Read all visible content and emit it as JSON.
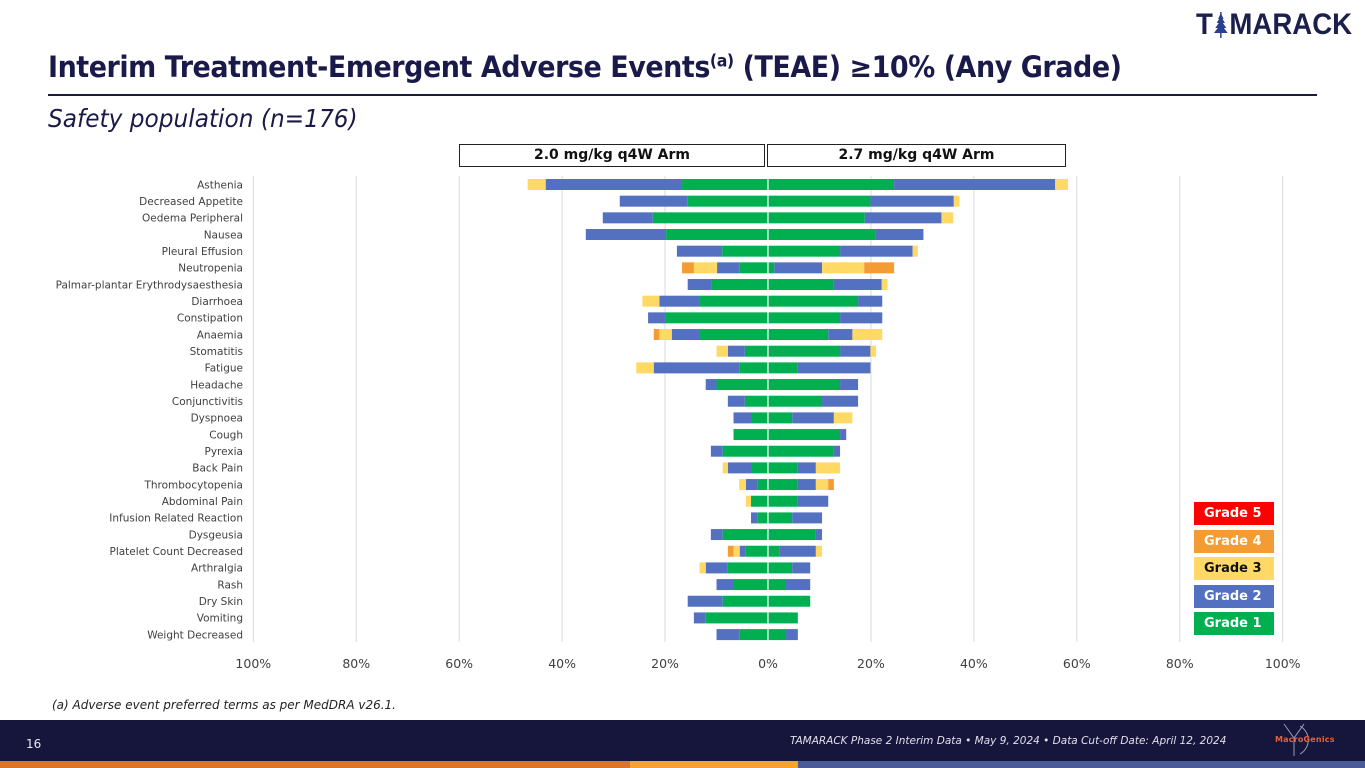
{
  "header": {
    "logo_text_left": "T",
    "logo_text_right": "MARACK",
    "title_main": "Interim Treatment-Emergent Adverse Events",
    "title_sup": "(a)",
    "title_tail": " (TEAE) ≥10% (Any Grade)",
    "subtitle": "Safety population (n=176)"
  },
  "arms": {
    "left_label": "2.0 mg/kg q4W Arm",
    "right_label": "2.7 mg/kg q4W Arm"
  },
  "legend": [
    {
      "label": "Grade 5",
      "color": "#ff0000",
      "text_color": "#ffffff"
    },
    {
      "label": "Grade 4",
      "color": "#f39c33",
      "text_color": "#ffffff"
    },
    {
      "label": "Grade 3",
      "color": "#ffd966",
      "text_color": "#111111"
    },
    {
      "label": "Grade 2",
      "color": "#5470c1",
      "text_color": "#ffffff"
    },
    {
      "label": "Grade 1",
      "color": "#00b050",
      "text_color": "#ffffff"
    }
  ],
  "chart_data": {
    "type": "bar",
    "orientation": "horizontal",
    "stacked": true,
    "layout": "butterfly",
    "title": "Interim Treatment-Emergent Adverse Events (TEAE) ≥10% (Any Grade)",
    "xlabel": "",
    "ylabel": "",
    "xlim": [
      -100,
      100
    ],
    "x_ticks": [
      "100%",
      "80%",
      "60%",
      "40%",
      "20%",
      "0%",
      "20%",
      "40%",
      "60%",
      "80%",
      "100%"
    ],
    "grid": true,
    "legend_position": "bottom-right",
    "grade_order": [
      "Grade 1",
      "Grade 2",
      "Grade 3",
      "Grade 4",
      "Grade 5"
    ],
    "grade_colors": [
      "#00b050",
      "#5470c1",
      "#ffd966",
      "#f39c33",
      "#ff0000"
    ],
    "panels": [
      "2.0 mg/kg q4W Arm",
      "2.7 mg/kg q4W Arm"
    ],
    "categories": [
      "Asthenia",
      "Decreased Appetite",
      "Oedema Peripheral",
      "Nausea",
      "Pleural Effusion",
      "Neutropenia",
      "Palmar-plantar Erythrodysaesthesia",
      "Diarrhoea",
      "Constipation",
      "Anaemia",
      "Stomatitis",
      "Fatigue",
      "Headache",
      "Conjunctivitis",
      "Dyspnoea",
      "Cough",
      "Pyrexia",
      "Back Pain",
      "Thrombocytopenia",
      "Abdominal Pain",
      "Infusion Related Reaction",
      "Dysgeusia",
      "Platelet Count Decreased",
      "Arthralgia",
      "Rash",
      "Dry Skin",
      "Vomiting",
      "Weight Decreased"
    ],
    "series_left_2_0mgkg": {
      "Grade 1": [
        16.7,
        15.6,
        22.4,
        19.8,
        8.9,
        5.5,
        10.9,
        13.3,
        20.0,
        13.4,
        4.5,
        5.6,
        10.0,
        4.5,
        3.2,
        6.7,
        8.8,
        3.2,
        2.1,
        3.3,
        2.1,
        8.8,
        4.3,
        7.8,
        6.7,
        8.8,
        12.1,
        5.5
      ],
      "Grade 2": [
        26.5,
        13.2,
        9.7,
        15.6,
        8.8,
        4.4,
        4.7,
        7.8,
        3.3,
        5.3,
        3.3,
        16.6,
        2.1,
        3.3,
        3.5,
        0,
        2.3,
        4.6,
        2.2,
        0,
        1.2,
        2.3,
        1.2,
        4.3,
        3.3,
        6.8,
        2.3,
        4.5
      ],
      "Grade 3": [
        3.5,
        0,
        0,
        0,
        0,
        4.5,
        0,
        3.3,
        0,
        2.4,
        2.2,
        3.4,
        0,
        0,
        0,
        0,
        0,
        1.0,
        1.3,
        1.0,
        0,
        0,
        1.2,
        1.2,
        0,
        0,
        0,
        0
      ],
      "Grade 4": [
        0,
        0,
        0,
        0,
        0,
        2.3,
        0,
        0,
        0,
        1.1,
        0,
        0,
        0,
        0,
        0,
        0,
        0,
        0,
        0,
        0,
        0,
        0,
        1.1,
        0,
        0,
        0,
        0,
        0
      ],
      "Grade 5": [
        0,
        0,
        0,
        0,
        0,
        0,
        0,
        0,
        0,
        0,
        0,
        0,
        0,
        0,
        0,
        0,
        0,
        0,
        0,
        0,
        0,
        0,
        0,
        0,
        0,
        0,
        0,
        0
      ]
    },
    "series_right_2_7mgkg": {
      "Grade 1": [
        24.5,
        19.9,
        18.8,
        20.9,
        14.0,
        1.2,
        12.8,
        17.5,
        14.0,
        11.7,
        14.0,
        5.8,
        14.0,
        10.5,
        4.7,
        14.0,
        12.8,
        5.8,
        5.8,
        5.8,
        4.7,
        9.3,
        2.3,
        4.7,
        3.5,
        8.2,
        5.8,
        3.5
      ],
      "Grade 2": [
        31.3,
        16.2,
        14.9,
        9.3,
        14.1,
        9.3,
        9.3,
        4.7,
        8.2,
        4.7,
        5.9,
        14.1,
        3.5,
        7.0,
        8.1,
        1.2,
        1.2,
        3.5,
        3.5,
        5.9,
        5.8,
        1.2,
        7.0,
        3.5,
        4.7,
        0,
        0,
        2.3
      ],
      "Grade 3": [
        2.5,
        1.1,
        2.3,
        0,
        1.0,
        8.2,
        1.1,
        0,
        0,
        5.8,
        1.1,
        0,
        0,
        0,
        3.6,
        0,
        0,
        4.7,
        2.4,
        0,
        0,
        0,
        1.2,
        0,
        0,
        0,
        0,
        0
      ],
      "Grade 4": [
        0,
        0,
        0,
        0,
        0,
        5.8,
        0,
        0,
        0,
        0,
        0,
        0,
        0,
        0,
        0,
        0,
        0,
        0,
        1.1,
        0,
        0,
        0,
        0,
        0,
        0,
        0,
        0,
        0
      ],
      "Grade 5": [
        0,
        0,
        0,
        0,
        0,
        0,
        0,
        0,
        0,
        0,
        0,
        0,
        0,
        0,
        0,
        0,
        0,
        0,
        0,
        0,
        0,
        0,
        0,
        0,
        0,
        0,
        0,
        0
      ]
    }
  },
  "footnote": "(a) Adverse event preferred terms as per MedDRA v26.1.",
  "footer": {
    "page_number": "16",
    "text": "TAMARACK Phase 2 Interim Data • May 9, 2024 • Data Cut-off Date: April 12, 2024",
    "partner_logo_text": "MacroGenics"
  }
}
